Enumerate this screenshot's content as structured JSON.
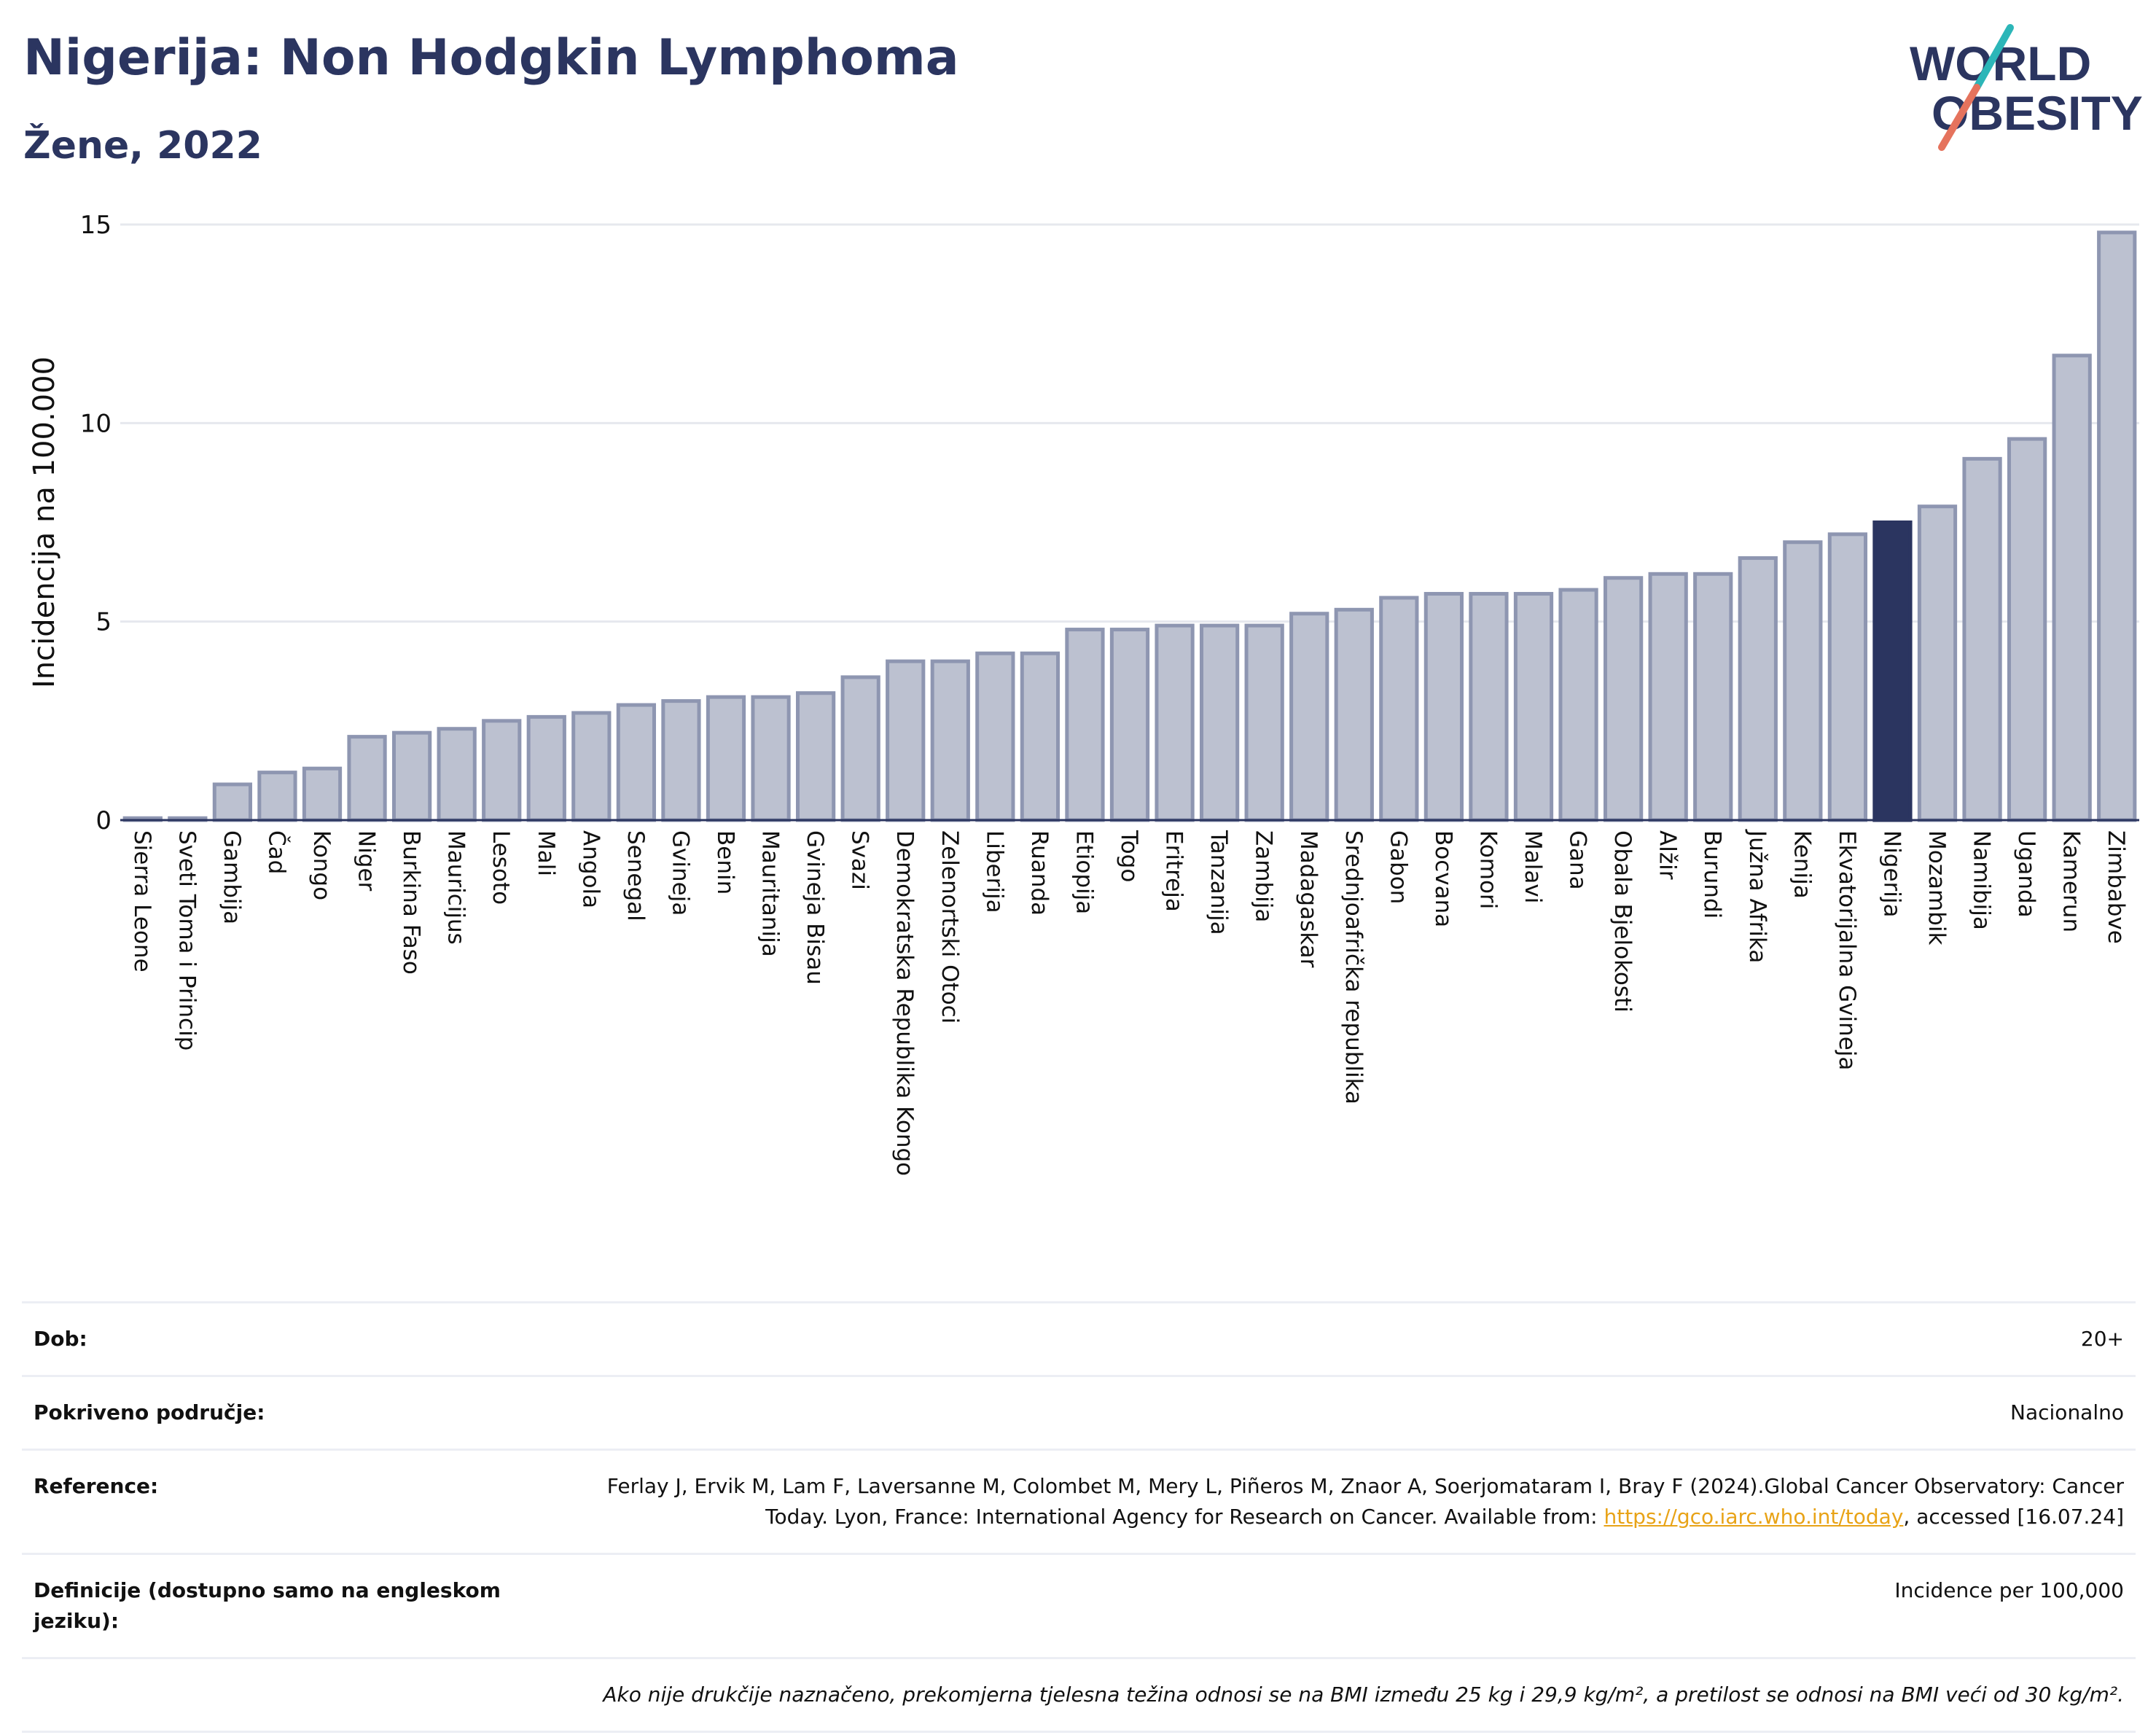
{
  "header": {
    "title": "Nigerija: Non Hodgkin Lymphoma",
    "subtitle": "Žene, 2022"
  },
  "logo": {
    "line1": "WORLD",
    "line2": "OBESITY"
  },
  "colors": {
    "bar": "#bcc1d0",
    "bar_stroke": "#8e96b1",
    "highlight": "#2b3560",
    "grid": "#e6e8ee",
    "title": "#2b3560",
    "logo_teal": "#2cb6b8",
    "logo_coral": "#e5735d"
  },
  "chart_data": {
    "type": "bar",
    "ylabel": "Incidencija na 100.000",
    "ylim": [
      0,
      15
    ],
    "yticks": [
      0,
      5,
      10,
      15
    ],
    "grid": true,
    "highlight": "Nigerija",
    "categories": [
      "Sierra Leone",
      "Sveti Toma i Princip",
      "Gambija",
      "Čad",
      "Kongo",
      "Niger",
      "Burkina Faso",
      "Mauricijus",
      "Lesoto",
      "Mali",
      "Angola",
      "Senegal",
      "Gvineja",
      "Benin",
      "Mauritanija",
      "Gvineja Bisau",
      "Svazi",
      "Demokratska Republika Kongo",
      "Zelenortski Otoci",
      "Liberija",
      "Ruanda",
      "Etiopija",
      "Togo",
      "Eritreja",
      "Tanzanija",
      "Zambija",
      "Madagaskar",
      "Srednjoafrička republika",
      "Gabon",
      "Bocvana",
      "Komori",
      "Malavi",
      "Gana",
      "Obala Bjelokosti",
      "Alžir",
      "Burundi",
      "Južna Afrika",
      "Kenija",
      "Ekvatorijalna Gvineja",
      "Nigerija",
      "Mozambik",
      "Namibija",
      "Uganda",
      "Kamerun",
      "Zimbabve"
    ],
    "values": [
      0.05,
      0.05,
      0.9,
      1.2,
      1.3,
      2.1,
      2.2,
      2.3,
      2.5,
      2.6,
      2.7,
      2.9,
      3.0,
      3.1,
      3.1,
      3.2,
      3.6,
      4.0,
      4.0,
      4.2,
      4.2,
      4.8,
      4.8,
      4.9,
      4.9,
      4.9,
      5.2,
      5.3,
      5.6,
      5.7,
      5.7,
      5.7,
      5.8,
      6.1,
      6.2,
      6.2,
      6.6,
      7.0,
      7.2,
      7.5,
      7.9,
      9.1,
      9.6,
      11.7,
      14.8
    ]
  },
  "info": {
    "age_label": "Dob:",
    "age_value": "20+",
    "coverage_label": "Pokriveno područje:",
    "coverage_value": "Nacionalno",
    "reference_label": "Reference:",
    "reference_text": "Ferlay J, Ervik M, Lam F, Laversanne M, Colombet M, Mery L, Piñeros M, Znaor A, Soerjomataram I, Bray F (2024).Global Cancer Observatory: Cancer Today. Lyon, France: International Agency for Research on Cancer. Available from:",
    "reference_link": "https://gco.iarc.who.int/today",
    "reference_tail": ", accessed [16.07.24]",
    "definitions_label": "Definicije (dostupno samo na engleskom jeziku):",
    "definitions_value": "Incidence per 100,000",
    "note": "Ako nije drukčije naznačeno, prekomjerna tjelesna težina odnosi se na BMI između 25 kg i 29,9 kg/m², a pretilost se odnosi na BMI veći od 30 kg/m²."
  }
}
